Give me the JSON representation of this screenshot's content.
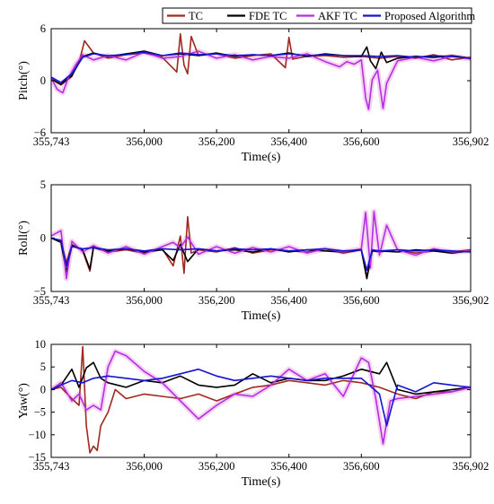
{
  "colors": {
    "TC": "#a0281e",
    "FDE TC": "#000000",
    "AKF TC": "#b42ee6",
    "Proposed Algorithm": "#1414d2",
    "shadow": "#f4c9ee"
  },
  "chart_data": [
    {
      "type": "line",
      "id": "pitch",
      "xlabel": "Time(s)",
      "ylabel": "Pitch(°)",
      "xlim": [
        355743,
        356902
      ],
      "ylim": [
        -6,
        6
      ],
      "xticks": [
        "355,743",
        "356,000",
        "356,200",
        "356,400",
        "356,600",
        "356,902"
      ],
      "yticks": [
        "−6",
        "0",
        "6"
      ],
      "grid": false,
      "legend": {
        "position": "top-right",
        "entries": [
          "TC",
          "FDE TC",
          "AKF TC",
          "Proposed Algorithm"
        ]
      },
      "series": [
        {
          "name": "TC",
          "x": [
            355743,
            355770,
            355800,
            355823,
            355835,
            355860,
            355900,
            355950,
            356000,
            356050,
            356090,
            356100,
            356110,
            356120,
            356130,
            356150,
            356200,
            356250,
            356300,
            356350,
            356390,
            356400,
            356410,
            356450,
            356500,
            356550,
            356600,
            356650,
            356700,
            356750,
            356800,
            356850,
            356902
          ],
          "y": [
            0.2,
            -0.5,
            0.5,
            2.6,
            4.6,
            3.2,
            2.6,
            3.0,
            3.2,
            2.7,
            1.0,
            5.4,
            1.8,
            0.8,
            5.1,
            2.9,
            3.1,
            2.6,
            2.9,
            3.1,
            1.5,
            5.0,
            2.5,
            2.8,
            2.9,
            2.7,
            2.8,
            2.6,
            2.8,
            2.6,
            3.0,
            2.4,
            2.7
          ]
        },
        {
          "name": "FDE TC",
          "x": [
            355743,
            355770,
            355800,
            355830,
            355860,
            355900,
            355950,
            356000,
            356050,
            356100,
            356150,
            356200,
            356250,
            356300,
            356350,
            356400,
            356450,
            356500,
            356550,
            356600,
            356615,
            356625,
            356640,
            356655,
            356670,
            356700,
            356750,
            356800,
            356850,
            356902
          ],
          "y": [
            0.2,
            -0.4,
            0.6,
            2.8,
            3.2,
            2.8,
            3.1,
            3.4,
            2.9,
            3.1,
            2.9,
            3.2,
            2.8,
            3.0,
            2.9,
            3.2,
            2.8,
            3.1,
            2.9,
            2.8,
            3.9,
            2.3,
            1.4,
            3.3,
            2.1,
            2.6,
            2.8,
            2.7,
            2.9,
            2.6
          ]
        },
        {
          "name": "AKF TC",
          "x": [
            355743,
            355760,
            355775,
            355790,
            355810,
            355830,
            355860,
            355900,
            355950,
            356000,
            356050,
            356100,
            356150,
            356200,
            356250,
            356300,
            356350,
            356400,
            356450,
            356500,
            356540,
            356560,
            356580,
            356600,
            356612,
            356620,
            356630,
            356645,
            356660,
            356670,
            356700,
            356750,
            356800,
            356850,
            356902
          ],
          "y": [
            0.3,
            -1.0,
            -1.4,
            0.3,
            1.8,
            3.0,
            2.4,
            2.9,
            2.4,
            3.3,
            2.6,
            2.8,
            3.4,
            2.6,
            3.0,
            2.4,
            2.8,
            2.6,
            3.1,
            2.2,
            1.6,
            2.2,
            1.9,
            2.4,
            -2.0,
            -3.3,
            0.1,
            1.2,
            -3.2,
            -0.3,
            2.3,
            2.7,
            2.3,
            2.8,
            2.5
          ]
        },
        {
          "name": "Proposed Algorithm",
          "x": [
            355743,
            355770,
            355800,
            355830,
            355860,
            355900,
            355950,
            356000,
            356050,
            356100,
            356150,
            356200,
            356250,
            356300,
            356350,
            356400,
            356450,
            356500,
            356550,
            356600,
            356650,
            356700,
            356750,
            356800,
            356850,
            356902
          ],
          "y": [
            0.4,
            -0.2,
            0.8,
            2.7,
            3.1,
            2.9,
            3.0,
            3.3,
            2.9,
            3.2,
            3.0,
            3.1,
            2.9,
            3.0,
            2.9,
            3.1,
            2.9,
            3.0,
            2.9,
            2.9,
            2.8,
            2.9,
            2.7,
            2.9,
            2.8,
            2.6
          ]
        }
      ]
    },
    {
      "type": "line",
      "id": "roll",
      "xlabel": "Time(s)",
      "ylabel": "Roll(°)",
      "xlim": [
        355743,
        356902
      ],
      "ylim": [
        -5,
        5
      ],
      "xticks": [
        "355,743",
        "356,000",
        "356,200",
        "356,400",
        "356,600",
        "356,902"
      ],
      "yticks": [
        "−5",
        "0",
        "5"
      ],
      "grid": false,
      "series": [
        {
          "name": "TC",
          "x": [
            355743,
            355770,
            355785,
            355800,
            355830,
            355850,
            355860,
            355900,
            355950,
            356000,
            356050,
            356080,
            356100,
            356110,
            356120,
            356130,
            356150,
            356200,
            356250,
            356300,
            356350,
            356400,
            356450,
            356500,
            356550,
            356600,
            356615,
            356630,
            356650,
            356700,
            356750,
            356800,
            356850,
            356902
          ],
          "y": [
            0,
            -0.3,
            -2.3,
            -0.6,
            -1.2,
            -3.1,
            -0.9,
            -1.3,
            -1.1,
            -1.4,
            -1.0,
            -2.6,
            0.2,
            -3.3,
            2.0,
            -1.4,
            -1.1,
            -1.3,
            -0.9,
            -1.4,
            -1.1,
            -1.2,
            -1.3,
            -1.0,
            -1.4,
            -1.1,
            -3.6,
            -1.2,
            -1.3,
            -1.1,
            -1.4,
            -1.2,
            -1.3,
            -1.1
          ]
        },
        {
          "name": "FDE TC",
          "x": [
            355743,
            355770,
            355785,
            355800,
            355830,
            355850,
            355860,
            355900,
            355950,
            356000,
            356050,
            356080,
            356100,
            356120,
            356150,
            356200,
            356250,
            356300,
            356350,
            356400,
            356450,
            356500,
            356550,
            356600,
            356615,
            356630,
            356650,
            356700,
            356750,
            356800,
            356850,
            356902
          ],
          "y": [
            0,
            -0.4,
            -3.2,
            -0.7,
            -1.1,
            -2.9,
            -0.8,
            -1.2,
            -1.0,
            -1.3,
            -1.1,
            -2.1,
            -0.6,
            -2.2,
            -1.0,
            -1.2,
            -1.1,
            -1.3,
            -1.0,
            -1.3,
            -1.1,
            -1.2,
            -1.3,
            -1.1,
            -3.8,
            -1.2,
            -1.2,
            -1.3,
            -1.1,
            -1.2,
            -1.4,
            -1.2
          ]
        },
        {
          "name": "AKF TC",
          "x": [
            355743,
            355770,
            355785,
            355800,
            355830,
            355860,
            355900,
            355950,
            356000,
            356050,
            356080,
            356100,
            356120,
            356150,
            356200,
            356250,
            356300,
            356350,
            356400,
            356450,
            356500,
            356550,
            356600,
            356612,
            356625,
            356635,
            356650,
            356670,
            356700,
            356750,
            356800,
            356850,
            356902
          ],
          "y": [
            0.2,
            0.7,
            -3.8,
            -0.3,
            -1.3,
            -0.7,
            -1.4,
            -0.8,
            -1.5,
            -0.8,
            -0.4,
            -0.9,
            0.1,
            -1.5,
            -0.8,
            -1.4,
            -0.9,
            -1.3,
            -0.8,
            -1.4,
            -1.0,
            -1.3,
            -1.0,
            2.4,
            -2.8,
            2.5,
            -1.6,
            1.2,
            -1.1,
            -1.6,
            -1.0,
            -1.3,
            -1.2
          ]
        },
        {
          "name": "Proposed Algorithm",
          "x": [
            355743,
            355770,
            355785,
            355800,
            355830,
            355860,
            355900,
            355950,
            356000,
            356050,
            356100,
            356150,
            356200,
            356250,
            356300,
            356350,
            356400,
            356450,
            356500,
            356550,
            356600,
            356615,
            356630,
            356650,
            356700,
            356750,
            356800,
            356850,
            356902
          ],
          "y": [
            0,
            -0.2,
            -2.6,
            -0.8,
            -1.0,
            -0.9,
            -1.1,
            -1.0,
            -1.2,
            -1.0,
            -1.1,
            -1.0,
            -1.2,
            -1.0,
            -1.1,
            -1.0,
            -1.2,
            -1.1,
            -1.0,
            -1.2,
            -1.1,
            -3.0,
            -1.1,
            -1.2,
            -1.1,
            -1.2,
            -1.1,
            -1.2,
            -1.3
          ]
        }
      ]
    },
    {
      "type": "line",
      "id": "yaw",
      "xlabel": "Time(s)",
      "ylabel": "Yaw(°)",
      "xlim": [
        355743,
        356902
      ],
      "ylim": [
        -15,
        10
      ],
      "xticks": [
        "355,743",
        "356,000",
        "356,200",
        "356,400",
        "356,600",
        "356,902"
      ],
      "yticks": [
        "−15",
        "−10",
        "−5",
        "0",
        "5",
        "10"
      ],
      "grid": false,
      "series": [
        {
          "name": "TC",
          "x": [
            355743,
            355770,
            355800,
            355820,
            355830,
            355840,
            355850,
            355860,
            355870,
            355880,
            355900,
            355920,
            355950,
            356000,
            356050,
            356100,
            356150,
            356200,
            356250,
            356300,
            356350,
            356400,
            356450,
            356500,
            356550,
            356600,
            356650,
            356700,
            356750,
            356800,
            356850,
            356902
          ],
          "y": [
            0,
            0.5,
            -2.0,
            -3.5,
            9.5,
            -8.0,
            -14.0,
            -12.5,
            -13.5,
            -8.0,
            -5.0,
            0.0,
            -2.0,
            -1.0,
            -1.5,
            -2.0,
            -1.0,
            -2.5,
            -1.0,
            0.5,
            1.0,
            2.0,
            1.5,
            1.0,
            2.0,
            1.5,
            0.5,
            -1.0,
            -2.0,
            -0.5,
            -0.5,
            0.5
          ]
        },
        {
          "name": "FDE TC",
          "x": [
            355743,
            355770,
            355800,
            355820,
            355840,
            355860,
            355880,
            355900,
            355950,
            356000,
            356050,
            356100,
            356150,
            356200,
            356250,
            356300,
            356350,
            356400,
            356450,
            356500,
            356550,
            356600,
            356650,
            356670,
            356700,
            356750,
            356800,
            356850,
            356902
          ],
          "y": [
            0,
            1.0,
            4.5,
            0.5,
            4.8,
            6.0,
            2.5,
            1.5,
            0.5,
            2.0,
            1.5,
            3.0,
            1.0,
            0.5,
            1.0,
            3.5,
            1.5,
            2.5,
            2.0,
            2.0,
            3.0,
            4.5,
            3.5,
            6.0,
            0.0,
            -1.0,
            -0.5,
            0.0,
            0.5
          ]
        },
        {
          "name": "AKF TC",
          "x": [
            355743,
            355770,
            355800,
            355820,
            355840,
            355860,
            355880,
            355900,
            355920,
            355950,
            356000,
            356050,
            356100,
            356150,
            356200,
            356250,
            356300,
            356350,
            356400,
            356450,
            356500,
            356550,
            356600,
            356620,
            356640,
            356660,
            356680,
            356700,
            356750,
            356800,
            356850,
            356902
          ],
          "y": [
            0,
            1.5,
            -2.5,
            -1.0,
            -4.5,
            -3.5,
            -4.5,
            5.0,
            8.5,
            7.5,
            4.0,
            1.5,
            -2.5,
            -6.5,
            -3.5,
            -1.0,
            -1.5,
            1.0,
            4.5,
            2.0,
            3.5,
            -1.5,
            7.0,
            6.0,
            -2.0,
            -12.0,
            -2.5,
            -2.0,
            -1.5,
            -1.0,
            -0.5,
            0.5
          ]
        },
        {
          "name": "Proposed Algorithm",
          "x": [
            355743,
            355770,
            355800,
            355830,
            355860,
            355900,
            355950,
            356000,
            356050,
            356100,
            356150,
            356200,
            356250,
            356300,
            356350,
            356400,
            356450,
            356500,
            356550,
            356600,
            356650,
            356670,
            356700,
            356750,
            356800,
            356850,
            356902
          ],
          "y": [
            0,
            1.0,
            2.0,
            1.5,
            2.5,
            3.0,
            2.5,
            2.0,
            2.5,
            3.5,
            4.5,
            3.0,
            2.0,
            2.5,
            3.0,
            2.5,
            2.0,
            2.5,
            2.5,
            2.5,
            -1.0,
            -8.0,
            1.0,
            -0.5,
            1.5,
            1.0,
            0.5
          ]
        }
      ]
    }
  ]
}
